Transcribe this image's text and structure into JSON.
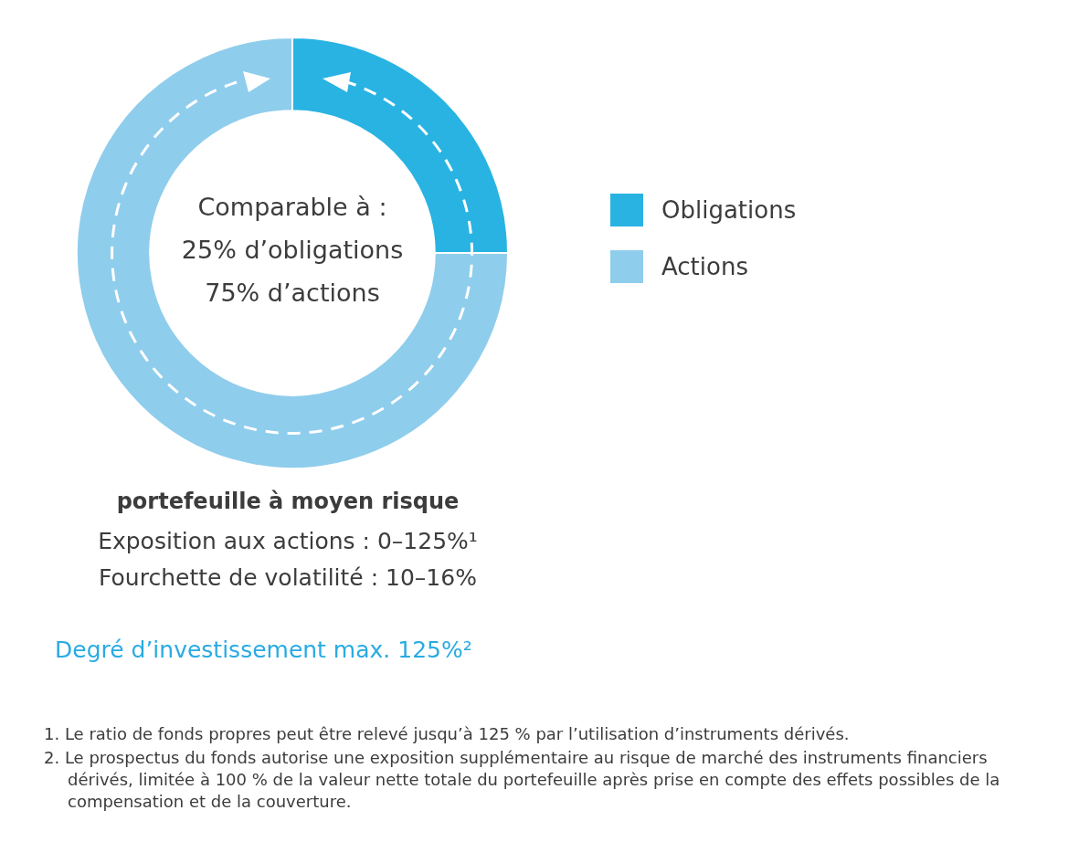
{
  "chart_data": {
    "type": "donut",
    "categories": [
      "Obligations",
      "Actions"
    ],
    "values": [
      25,
      75
    ],
    "colors": [
      "#29b3e2",
      "#8fcdec"
    ],
    "legend": "right",
    "annotations": [
      "Comparable à :",
      "25% d’obligations",
      "75% d’actions",
      "portefeuille à moyen risque",
      "Exposition aux actions : 0–125%¹",
      "Fourchette de volatilité : 10–16%",
      "Degré d’investissement max. 125%²",
      "1.  Le ratio de fonds propres peut être relevé jusqu’à 125 % par l’utilisation d’instruments dérivés.",
      "2.  Le prospectus du fonds autorise une exposition supplémentaire au risque de marché des instruments financiers dérivés, limitée à 100 % de la valeur nette totale du portefeuille après prise en compte des effets possibles de la compensation et de la couverture."
    ]
  }
}
